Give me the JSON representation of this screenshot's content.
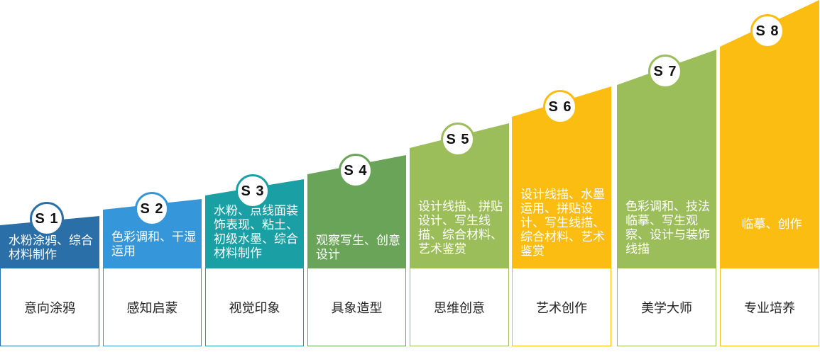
{
  "steps": [
    {
      "badge": "S 1",
      "desc": "水粉涂鸦、综合材料制作",
      "label": "意向涂鸦",
      "color": "#2a6fa8"
    },
    {
      "badge": "S 2",
      "desc": "色彩调和、干湿运用",
      "label": "感知启蒙",
      "color": "#3596da"
    },
    {
      "badge": "S 3",
      "desc": "水粉、点线面装饰表现、粘土、初级水墨、综合材料制作",
      "label": "视觉印象",
      "color": "#1aa0a4"
    },
    {
      "badge": "S 4",
      "desc": "观察写生、创意设计",
      "label": "具象造型",
      "color": "#6aa459"
    },
    {
      "badge": "S 5",
      "desc": "设计线描、拼贴设计、写生线描、综合材料、艺术鉴赏",
      "label": "思维创意",
      "color": "#9cbe5a"
    },
    {
      "badge": "S 6",
      "desc": "设计线描、水墨运用、拼贴设计、写生线描、综合材料、艺术鉴赏",
      "label": "艺术创作",
      "color": "#fbbd11"
    },
    {
      "badge": "S 7",
      "desc": "色彩调和、技法临摹、写生观察、设计与装饰线描",
      "label": "美学大师",
      "color": "#9cbe5a"
    },
    {
      "badge": "S 8",
      "desc": "临摹、创作",
      "label": "专业培养",
      "color": "#fbbd11"
    }
  ]
}
